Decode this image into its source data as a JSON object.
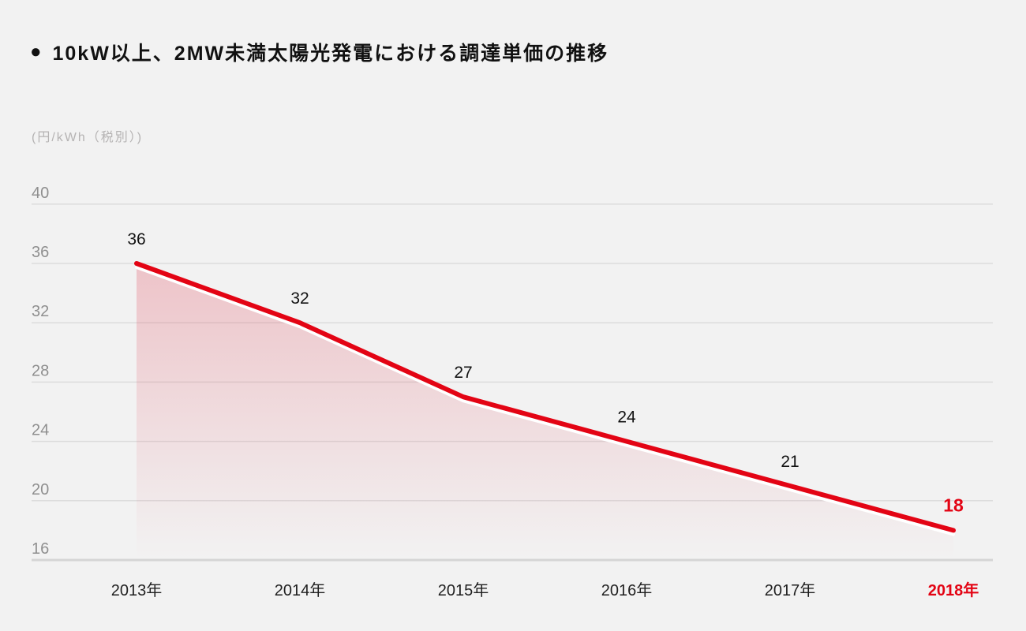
{
  "page": {
    "background": "#f2f2f2"
  },
  "header": {
    "bullet": "●",
    "title": "10kW以上、2MW未満太陽光発電における調達単価の推移"
  },
  "axis": {
    "unit_label": "(円/kWh（税別）)"
  },
  "chart_data": {
    "type": "area",
    "title": "10kW以上、2MW未満太陽光発電における調達単価の推移",
    "categories": [
      "2013年",
      "2014年",
      "2015年",
      "2016年",
      "2017年",
      "2018年"
    ],
    "values": [
      36,
      32,
      27,
      24,
      21,
      18
    ],
    "xlabel": "",
    "ylabel": "(円/kWh（税別）)",
    "yticks": [
      40,
      36,
      32,
      28,
      24,
      20,
      16
    ],
    "ylim": [
      16,
      40
    ],
    "grid": true,
    "legend": false,
    "highlight_index": 5,
    "line_color": "#e30414",
    "line_shadow_color": "#ffffff",
    "area_top_color": "#df3e52",
    "grid_color": "#dcdcdc",
    "grid_base_color": "#d5d5d5",
    "tick_color": "#8f8f8f",
    "unit_color": "#b5b3b3"
  }
}
